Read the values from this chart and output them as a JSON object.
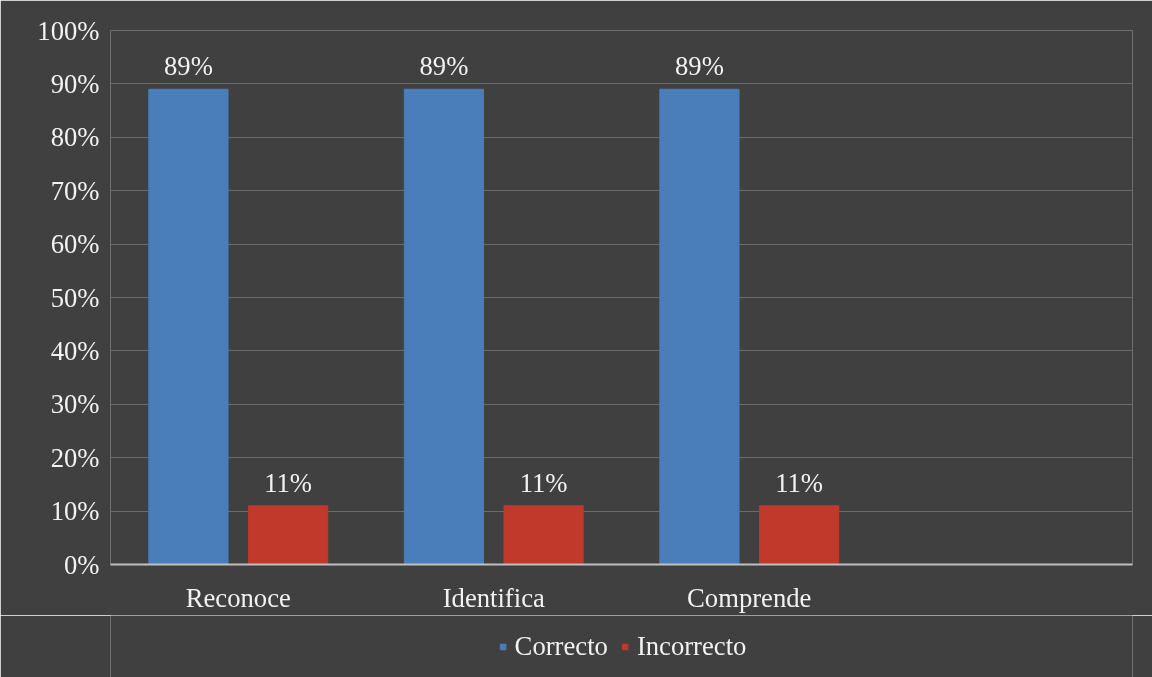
{
  "chart_data": {
    "type": "bar",
    "categories": [
      "Reconoce",
      "Identifica",
      "Comprende",
      null
    ],
    "series": [
      {
        "name": "Correcto",
        "color": "#4a7ebb",
        "values": [
          89,
          89,
          89,
          null
        ],
        "value_labels": [
          "89%",
          "89%",
          "89%",
          null
        ]
      },
      {
        "name": "Incorrecto",
        "color": "#c0392b",
        "values": [
          11,
          11,
          11,
          null
        ],
        "value_labels": [
          "11%",
          "11%",
          "11%",
          null
        ]
      }
    ],
    "ylim": [
      0,
      100
    ],
    "yticks": [
      {
        "value": 0,
        "label": "0%"
      },
      {
        "value": 10,
        "label": "10%"
      },
      {
        "value": 20,
        "label": "20%"
      },
      {
        "value": 30,
        "label": "30%"
      },
      {
        "value": 40,
        "label": "40%"
      },
      {
        "value": 50,
        "label": "50%"
      },
      {
        "value": 60,
        "label": "60%"
      },
      {
        "value": 70,
        "label": "70%"
      },
      {
        "value": 80,
        "label": "80%"
      },
      {
        "value": 90,
        "label": "90%"
      },
      {
        "value": 100,
        "label": "100%"
      }
    ],
    "grid": "y",
    "legend": "bottom"
  }
}
